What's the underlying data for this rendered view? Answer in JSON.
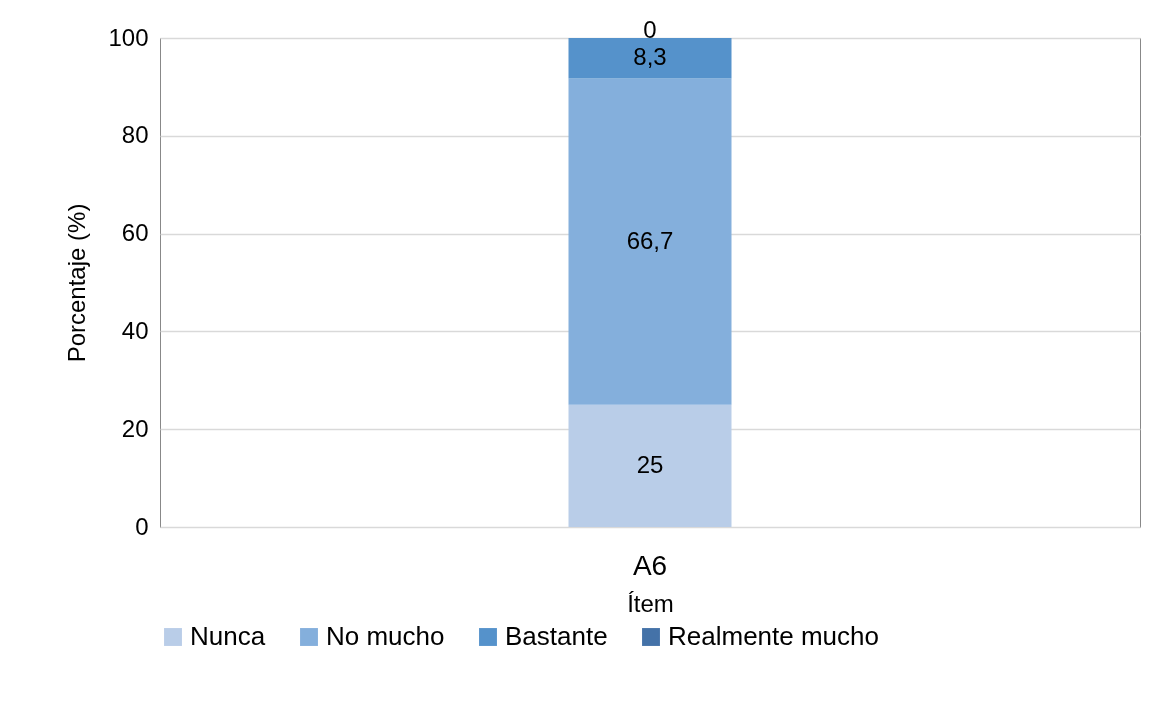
{
  "chart_data": {
    "type": "bar",
    "stacked": true,
    "xlabel": "Ítem",
    "ylabel": "Porcentaje (%)",
    "categories": [
      "A6"
    ],
    "series": [
      {
        "name": "Nunca",
        "color": "#b9cde8",
        "values": [
          25
        ],
        "value_labels": [
          "25"
        ]
      },
      {
        "name": "No mucho",
        "color": "#84afdc",
        "values": [
          66.7
        ],
        "value_labels": [
          "66,7"
        ]
      },
      {
        "name": "Bastante",
        "color": "#5592cb",
        "values": [
          8.3
        ],
        "value_labels": [
          "8,3"
        ]
      },
      {
        "name": "Realmente mucho",
        "color": "#4472a8",
        "values": [
          0
        ],
        "value_labels": [
          "0"
        ]
      }
    ],
    "ylim": [
      0,
      100
    ],
    "yticks": [
      0,
      20,
      40,
      60,
      80,
      100
    ],
    "grid": "y",
    "legend": "bottom"
  }
}
